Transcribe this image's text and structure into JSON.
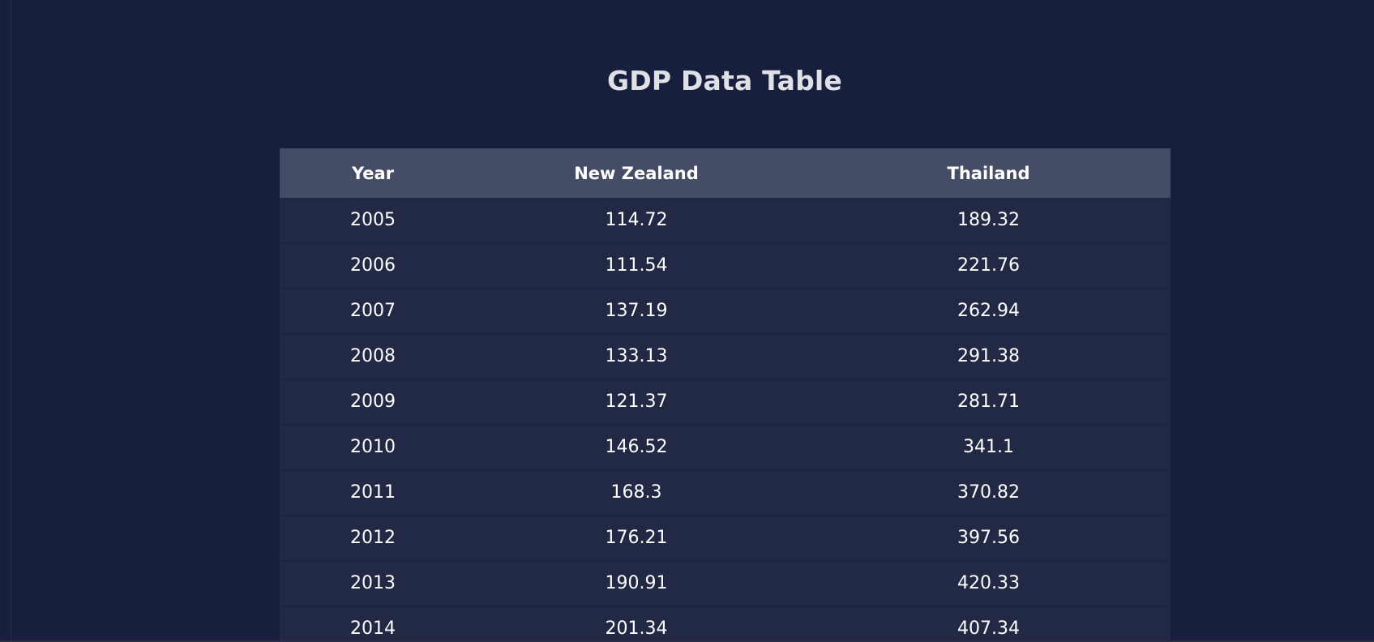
{
  "chart_data": {
    "type": "table",
    "title": "GDP Data Table",
    "columns": [
      "Year",
      "New Zealand",
      "Thailand"
    ],
    "rows": [
      [
        "2005",
        "114.72",
        "189.32"
      ],
      [
        "2006",
        "111.54",
        "221.76"
      ],
      [
        "2007",
        "137.19",
        "262.94"
      ],
      [
        "2008",
        "133.13",
        "291.38"
      ],
      [
        "2009",
        "121.37",
        "281.71"
      ],
      [
        "2010",
        "146.52",
        "341.1"
      ],
      [
        "2011",
        "168.3",
        "370.82"
      ],
      [
        "2012",
        "176.21",
        "397.56"
      ],
      [
        "2013",
        "190.91",
        "420.33"
      ],
      [
        "2014",
        "201.34",
        "407.34"
      ]
    ]
  }
}
